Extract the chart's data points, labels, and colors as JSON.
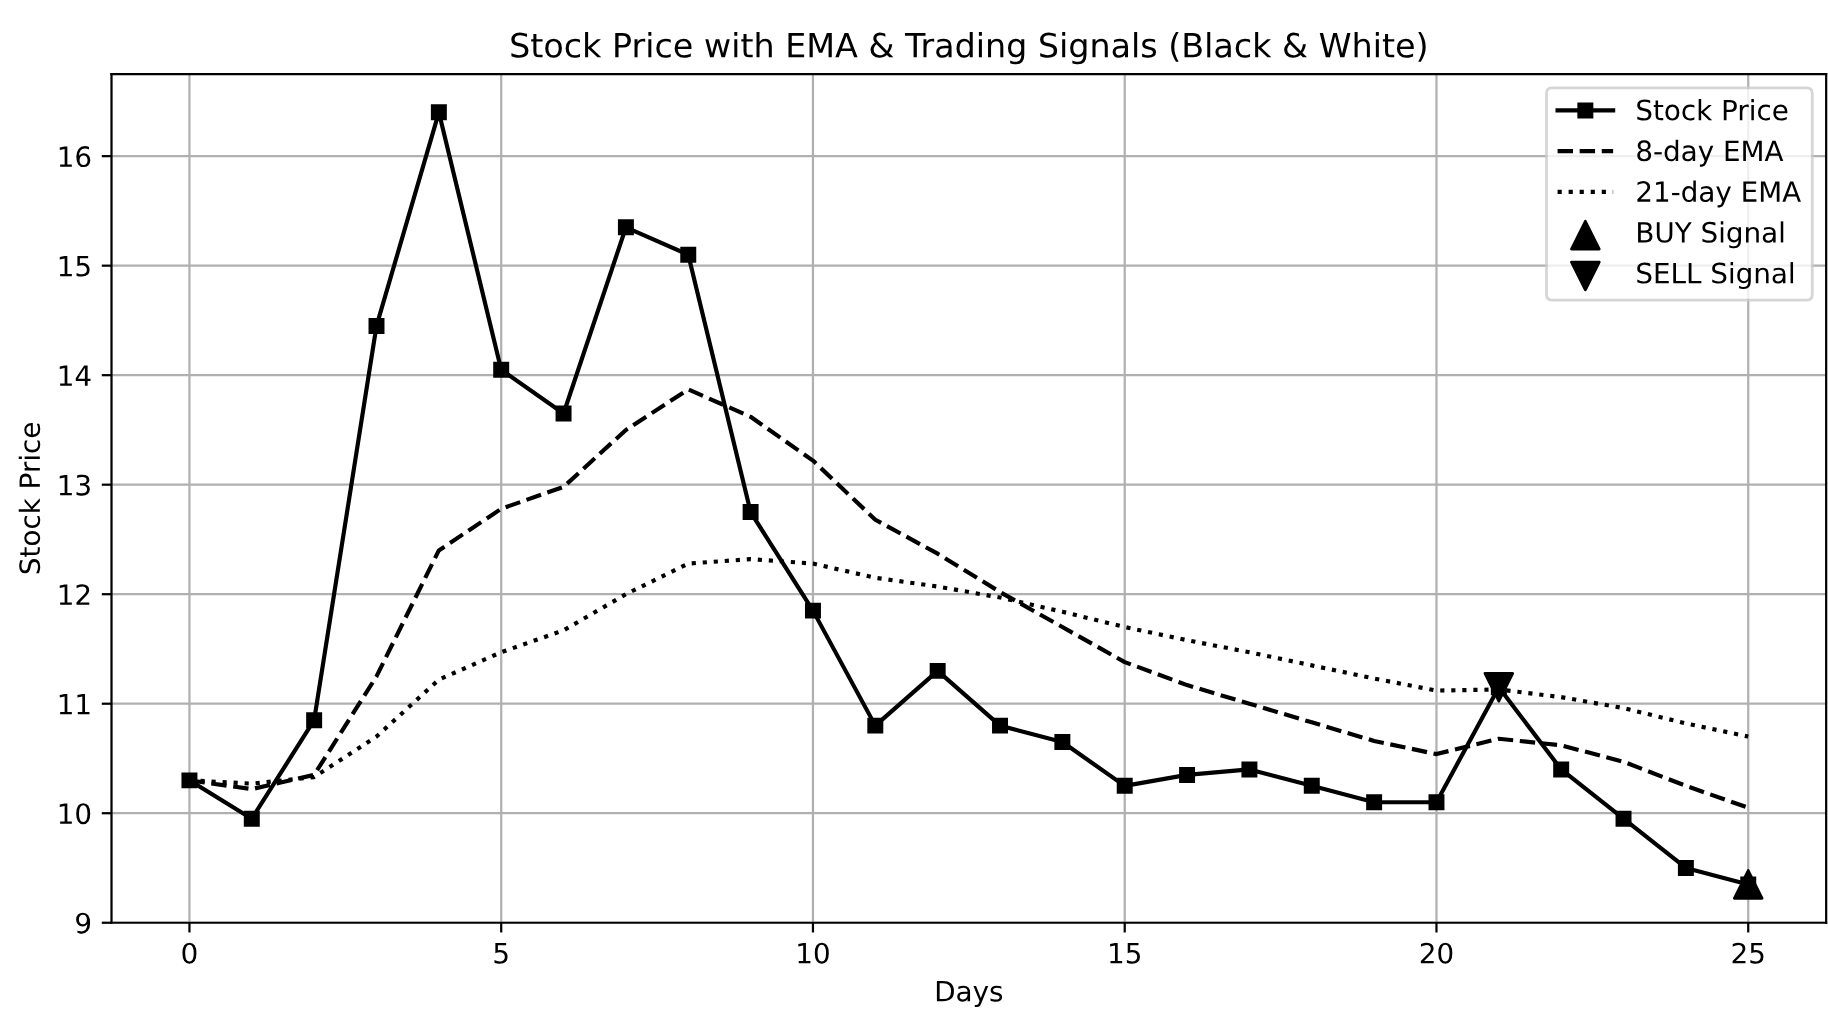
{
  "chart_data": {
    "type": "line",
    "title": "Stock Price with EMA & Trading Signals (Black & White)",
    "xlabel": "Days",
    "ylabel": "Stock Price",
    "x": [
      0,
      1,
      2,
      3,
      4,
      5,
      6,
      7,
      8,
      9,
      10,
      11,
      12,
      13,
      14,
      15,
      16,
      17,
      18,
      19,
      20,
      21,
      22,
      23,
      24,
      25
    ],
    "series": [
      {
        "name": "Stock Price",
        "color": "#000000",
        "marker": "square",
        "line_style": "solid",
        "values": [
          10.3,
          9.95,
          10.85,
          14.45,
          16.4,
          14.05,
          13.65,
          15.35,
          15.1,
          12.75,
          11.85,
          10.8,
          11.3,
          10.8,
          10.65,
          10.25,
          10.35,
          10.4,
          10.25,
          10.1,
          10.1,
          11.15,
          10.4,
          9.95,
          9.5,
          9.35
        ]
      },
      {
        "name": "8-day EMA",
        "color": "#000000",
        "marker": "none",
        "line_style": "dashed",
        "values": [
          10.3,
          10.22,
          10.35,
          11.25,
          12.4,
          12.78,
          12.98,
          13.5,
          13.87,
          13.62,
          13.22,
          12.68,
          12.37,
          12.02,
          11.7,
          11.38,
          11.17,
          11.0,
          10.83,
          10.66,
          10.54,
          10.68,
          10.62,
          10.47,
          10.25,
          10.05
        ]
      },
      {
        "name": "21-day EMA",
        "color": "#000000",
        "marker": "none",
        "line_style": "dotted",
        "values": [
          10.3,
          10.27,
          10.33,
          10.7,
          11.22,
          11.47,
          11.67,
          12.0,
          12.28,
          12.32,
          12.28,
          12.15,
          12.07,
          11.97,
          11.84,
          11.7,
          11.58,
          11.47,
          11.35,
          11.23,
          11.12,
          11.13,
          11.06,
          10.96,
          10.82,
          10.7
        ]
      },
      {
        "name": "BUY Signal",
        "type": "scatter",
        "color": "#000000",
        "marker": "triangle",
        "x": [
          25
        ],
        "values": [
          9.35
        ]
      },
      {
        "name": "SELL Signal",
        "type": "scatter",
        "color": "#000000",
        "x": [
          21
        ],
        "values": [
          11.15
        ]
      }
    ],
    "xlim": [
      -1.25,
      26.25
    ],
    "xticks": [
      0,
      5,
      10,
      15,
      20,
      25
    ],
    "ylim": [
      9,
      16.75
    ],
    "yticks": [
      9,
      10,
      11,
      12,
      13,
      14,
      15,
      16
    ],
    "grid": true,
    "legend": "top right"
  }
}
